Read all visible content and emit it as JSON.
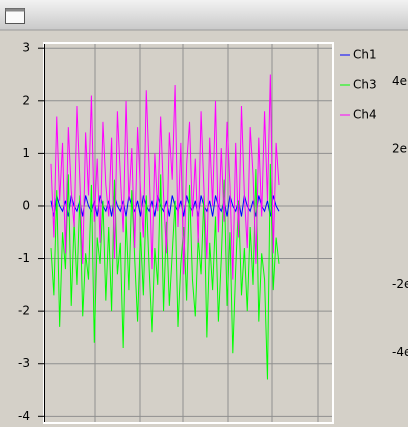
{
  "chart_data": {
    "type": "line",
    "ylim": [
      -4.07,
      3.08
    ],
    "yticks": [
      -4,
      -3,
      -2,
      -1,
      0,
      1,
      2,
      3
    ],
    "grid": true,
    "y2lim": [
      -6,
      5.1
    ],
    "y2ticks": [
      {
        "value": 4,
        "label": "4e"
      },
      {
        "value": 2,
        "label": "2e"
      },
      {
        "value": -2,
        "label": "-2e"
      },
      {
        "value": -4,
        "label": "-4e"
      }
    ],
    "series": [
      {
        "name": "Ch1",
        "color": "#0000ff",
        "values": [
          0.1,
          -0.2,
          0.2,
          0.0,
          -0.1,
          0.1,
          -0.2,
          0.2,
          0.0,
          -0.1,
          0.1,
          -0.2,
          0.2,
          0.0,
          -0.1,
          0.1,
          -0.2,
          0.2,
          0.0,
          -0.1,
          0.1,
          -0.2,
          0.2,
          0.0,
          -0.1,
          0.1,
          -0.2,
          0.2,
          0.0,
          -0.1,
          0.1,
          -0.2,
          0.2,
          0.0,
          -0.1,
          0.1,
          -0.2,
          0.2,
          0.0,
          -0.1,
          0.1,
          -0.2,
          0.2,
          0.0,
          -0.1,
          0.1,
          -0.2,
          0.2,
          0.0,
          -0.1,
          0.1,
          -0.2,
          0.2,
          0.0,
          -0.1,
          0.1,
          -0.2,
          0.2,
          0.0,
          -0.1,
          0.1,
          -0.2,
          0.2,
          0.0,
          -0.1,
          0.1,
          -0.2,
          0.2,
          0.0,
          -0.1,
          0.1,
          -0.2,
          0.2,
          0.0,
          -0.1,
          0.1,
          -0.2,
          0.2,
          0.0,
          -0.1
        ]
      },
      {
        "name": "Ch3",
        "color": "#00ff00",
        "values": [
          -0.8,
          -1.7,
          0.3,
          -2.3,
          -0.5,
          -1.2,
          0.6,
          -1.9,
          -0.3,
          -1.5,
          0.2,
          -2.1,
          -0.9,
          -1.4,
          0.4,
          -2.6,
          -0.6,
          -1.1,
          0.1,
          -1.8,
          -0.4,
          -2.0,
          0.5,
          -1.3,
          -0.7,
          -2.7,
          -0.2,
          -1.6,
          0.3,
          -1.0,
          -2.2,
          -0.5,
          -1.7,
          0.2,
          -1.2,
          -2.4,
          -0.8,
          -1.5,
          0.6,
          -2.0,
          -0.3,
          -1.9,
          -0.9,
          0.1,
          -2.3,
          -1.1,
          -0.4,
          -1.8,
          0.4,
          -1.4,
          -2.1,
          -0.6,
          -1.3,
          0.2,
          -2.5,
          -0.7,
          -1.6,
          -0.2,
          -2.2,
          -1.0,
          0.5,
          -1.9,
          -0.5,
          -2.8,
          -1.2,
          0.1,
          -1.7,
          -0.8,
          -2.0,
          -0.4,
          -1.5,
          0.7,
          -2.2,
          -0.9,
          -1.4,
          -3.3,
          0.8,
          -1.6,
          -0.6,
          -1.1
        ]
      },
      {
        "name": "Ch4",
        "color": "#ff00ff",
        "values": [
          0.8,
          -0.6,
          1.7,
          0.1,
          1.2,
          -0.9,
          1.5,
          0.3,
          -0.4,
          1.9,
          0.5,
          -1.1,
          1.4,
          0.2,
          2.1,
          -0.3,
          0.9,
          -0.7,
          1.6,
          0.4,
          -0.2,
          1.3,
          -1.0,
          1.8,
          0.6,
          -0.5,
          2.0,
          0.1,
          1.1,
          -0.8,
          1.5,
          0.3,
          -0.6,
          2.2,
          0.7,
          -1.2,
          1.0,
          -0.1,
          1.7,
          0.2,
          -0.9,
          1.4,
          0.5,
          2.3,
          -0.4,
          1.2,
          -1.3,
          0.8,
          1.6,
          -0.2,
          0.9,
          -0.7,
          1.8,
          0.3,
          -1.0,
          1.3,
          0.0,
          2.0,
          -0.5,
          1.1,
          -0.3,
          1.6,
          0.4,
          -1.4,
          1.2,
          -0.6,
          1.9,
          0.2,
          -0.8,
          1.5,
          0.6,
          -1.1,
          1.3,
          -0.2,
          1.8,
          0.1,
          2.5,
          -0.9,
          1.2,
          0.4
        ]
      }
    ]
  }
}
